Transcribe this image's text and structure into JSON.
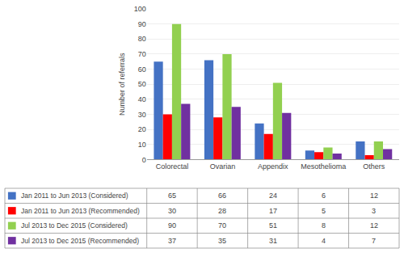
{
  "chart_data": {
    "type": "bar",
    "categories": [
      "Colorectal",
      "Ovarian",
      "Appendix",
      "Mesothelioma",
      "Others"
    ],
    "series": [
      {
        "name": "Jan 2011 to Jun 2013 (Considered)",
        "color": "#4472C4",
        "values": [
          65,
          66,
          24,
          6,
          12
        ]
      },
      {
        "name": "Jan 2011 to Jun 2013 (Recommended)",
        "color": "#FF0000",
        "values": [
          30,
          28,
          17,
          5,
          3
        ]
      },
      {
        "name": "Jul 2013 to Dec 2015 (Considered)",
        "color": "#92D050",
        "values": [
          90,
          70,
          51,
          8,
          12
        ]
      },
      {
        "name": "Jul 2013 to Dec 2015 (Recommended)",
        "color": "#7030A0",
        "values": [
          37,
          35,
          31,
          4,
          7
        ]
      }
    ],
    "ylabel": "Number of referrals",
    "ylim": [
      0,
      100
    ],
    "yticks": [
      0,
      10,
      20,
      30,
      40,
      50,
      60,
      70,
      80,
      90,
      100
    ],
    "grid": true
  }
}
